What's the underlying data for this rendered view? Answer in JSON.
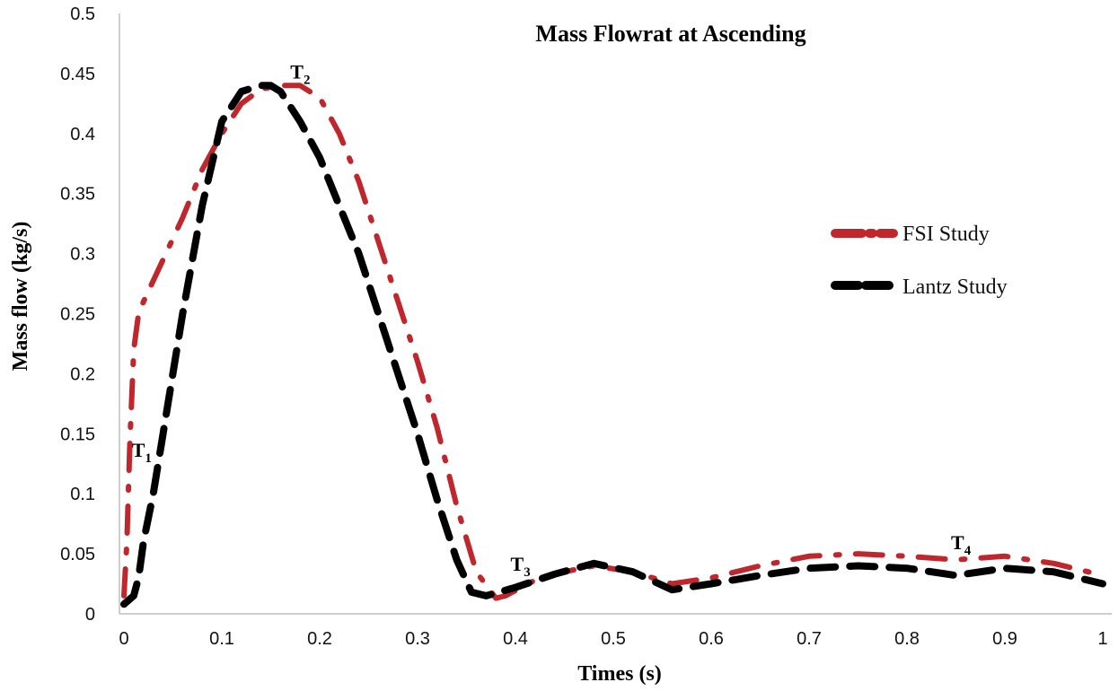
{
  "chart_data": {
    "type": "line",
    "title": "Mass Flowrat at Ascending",
    "xlabel": "Times (s)",
    "ylabel": "Mass flow (kg/s)",
    "xlim": [
      0,
      1
    ],
    "ylim": [
      0,
      0.5
    ],
    "x_ticks": [
      "0",
      "0.1",
      "0.2",
      "0.3",
      "0.4",
      "0.5",
      "0.6",
      "0.7",
      "0.8",
      "0.9",
      "1"
    ],
    "y_ticks": [
      "0",
      "0.05",
      "0.1",
      "0.15",
      "0.2",
      "0.25",
      "0.3",
      "0.35",
      "0.4",
      "0.45",
      "0.5"
    ],
    "grid": false,
    "legend_position": "right",
    "series": [
      {
        "name": "FSI Study",
        "color": "#c0272d",
        "style": "dash-dot",
        "x": [
          0,
          0.003,
          0.006,
          0.01,
          0.015,
          0.02,
          0.04,
          0.06,
          0.08,
          0.1,
          0.12,
          0.14,
          0.16,
          0.18,
          0.2,
          0.22,
          0.24,
          0.26,
          0.28,
          0.3,
          0.32,
          0.34,
          0.36,
          0.38,
          0.39,
          0.42,
          0.45,
          0.48,
          0.52,
          0.56,
          0.6,
          0.65,
          0.7,
          0.75,
          0.8,
          0.85,
          0.9,
          0.95,
          1
        ],
        "y": [
          0.015,
          0.06,
          0.14,
          0.22,
          0.25,
          0.26,
          0.295,
          0.33,
          0.37,
          0.4,
          0.425,
          0.437,
          0.44,
          0.44,
          0.43,
          0.4,
          0.36,
          0.31,
          0.26,
          0.21,
          0.155,
          0.09,
          0.035,
          0.013,
          0.015,
          0.028,
          0.035,
          0.04,
          0.035,
          0.025,
          0.03,
          0.04,
          0.048,
          0.05,
          0.048,
          0.045,
          0.048,
          0.042,
          0.032
        ]
      },
      {
        "name": "Lantz Study",
        "color": "#000000",
        "style": "dash",
        "x": [
          0,
          0.01,
          0.015,
          0.02,
          0.03,
          0.04,
          0.06,
          0.08,
          0.1,
          0.12,
          0.14,
          0.15,
          0.16,
          0.18,
          0.2,
          0.22,
          0.24,
          0.26,
          0.28,
          0.3,
          0.32,
          0.34,
          0.355,
          0.37,
          0.4,
          0.44,
          0.48,
          0.52,
          0.56,
          0.6,
          0.65,
          0.7,
          0.75,
          0.8,
          0.85,
          0.9,
          0.95,
          1
        ],
        "y": [
          0.008,
          0.015,
          0.03,
          0.06,
          0.1,
          0.15,
          0.25,
          0.34,
          0.41,
          0.435,
          0.44,
          0.44,
          0.435,
          0.41,
          0.38,
          0.34,
          0.3,
          0.25,
          0.2,
          0.15,
          0.095,
          0.045,
          0.018,
          0.015,
          0.022,
          0.033,
          0.042,
          0.035,
          0.02,
          0.025,
          0.032,
          0.038,
          0.04,
          0.038,
          0.032,
          0.038,
          0.035,
          0.025
        ]
      }
    ],
    "annotations": [
      {
        "label": "T",
        "sub": "1",
        "x": 0.008,
        "y": 0.125
      },
      {
        "label": "T",
        "sub": "2",
        "x": 0.17,
        "y": 0.44
      },
      {
        "label": "T",
        "sub": "3",
        "x": 0.395,
        "y": 0.03
      },
      {
        "label": "T",
        "sub": "4",
        "x": 0.845,
        "y": 0.048
      }
    ]
  }
}
